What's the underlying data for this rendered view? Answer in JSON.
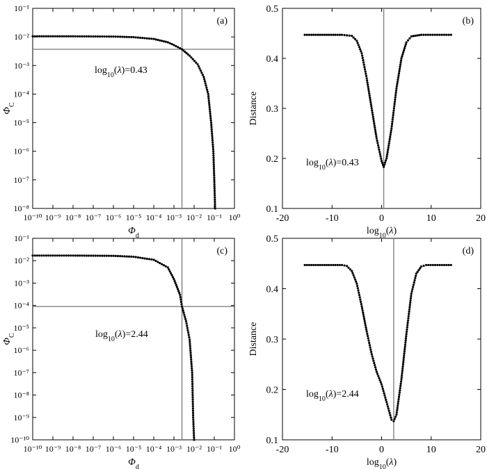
{
  "chart_data": [
    {
      "panel": "(a)",
      "type": "scatter",
      "xlabel": {
        "sym": "Φ",
        "sub": "d"
      },
      "ylabel": {
        "sym": "Φ",
        "sub": "C"
      },
      "xscale": "log",
      "yscale": "log",
      "xlim": [
        1e-10,
        1
      ],
      "ylim": [
        1e-08,
        0.1
      ],
      "xtick_exponents": [
        -10,
        -9,
        -8,
        -7,
        -6,
        -5,
        -4,
        -3,
        -2,
        -1,
        0
      ],
      "ytick_exponents": [
        -8,
        -7,
        -6,
        -5,
        -4,
        -3,
        -2,
        -1
      ],
      "vline_x": 0.0025,
      "hline_y": 0.0037,
      "annotation": {
        "pre": "log",
        "sub": "10",
        "lambda": "λ",
        "post": "=0.43"
      },
      "points": [
        [
          1e-10,
          0.0105
        ],
        [
          1e-09,
          0.0105
        ],
        [
          1e-08,
          0.0105
        ],
        [
          1e-07,
          0.0104
        ],
        [
          1e-06,
          0.0103
        ],
        [
          1e-05,
          0.0098
        ],
        [
          0.0001,
          0.0085
        ],
        [
          0.0005,
          0.0065
        ],
        [
          0.001,
          0.0052
        ],
        [
          0.0025,
          0.0037
        ],
        [
          0.006,
          0.0022
        ],
        [
          0.015,
          0.0011
        ],
        [
          0.03,
          0.0004
        ],
        [
          0.05,
          0.0001
        ],
        [
          0.07,
          1e-05
        ],
        [
          0.09,
          1e-06
        ],
        [
          0.1,
          1e-07
        ],
        [
          0.11,
          1e-08
        ]
      ]
    },
    {
      "panel": "(b)",
      "type": "scatter",
      "xlabel": {
        "pre": "log",
        "sub": "10",
        "lambda": "λ"
      },
      "ylabel": "Distance",
      "xlim": [
        -20,
        20
      ],
      "ylim": [
        0.1,
        0.5
      ],
      "xticks": [
        -20,
        -10,
        0,
        10,
        20
      ],
      "yticks": [
        0.1,
        0.2,
        0.3,
        0.4,
        0.5
      ],
      "vline_x": 0.43,
      "annotation": {
        "pre": "log",
        "sub": "10",
        "lambda": "λ",
        "post": "=0.43"
      },
      "points": [
        [
          -15.5,
          0.447
        ],
        [
          -8,
          0.447
        ],
        [
          -6,
          0.445
        ],
        [
          -5,
          0.435
        ],
        [
          -4,
          0.41
        ],
        [
          -3,
          0.36
        ],
        [
          -2,
          0.3
        ],
        [
          -1,
          0.24
        ],
        [
          0,
          0.195
        ],
        [
          0.43,
          0.183
        ],
        [
          1,
          0.2
        ],
        [
          2,
          0.26
        ],
        [
          3,
          0.34
        ],
        [
          4,
          0.4
        ],
        [
          5,
          0.432
        ],
        [
          6,
          0.444
        ],
        [
          8,
          0.447
        ],
        [
          14,
          0.447
        ]
      ]
    },
    {
      "panel": "(c)",
      "type": "scatter",
      "xlabel": {
        "sym": "Φ",
        "sub": "d"
      },
      "ylabel": {
        "sym": "Φ",
        "sub": "C"
      },
      "xscale": "log",
      "yscale": "log",
      "xlim": [
        1e-10,
        1
      ],
      "ylim": [
        1e-10,
        0.1
      ],
      "xtick_exponents": [
        -10,
        -9,
        -8,
        -7,
        -6,
        -5,
        -4,
        -3,
        -2,
        -1,
        0
      ],
      "ytick_exponents": [
        -10,
        -9,
        -8,
        -7,
        -6,
        -5,
        -4,
        -3,
        -2,
        -1
      ],
      "vline_x": 0.0025,
      "hline_y": 9e-05,
      "annotation": {
        "pre": "log",
        "sub": "10",
        "lambda": "λ",
        "post": "=2.44"
      },
      "points": [
        [
          1e-10,
          0.017
        ],
        [
          1e-08,
          0.017
        ],
        [
          1e-06,
          0.0165
        ],
        [
          1e-05,
          0.015
        ],
        [
          0.0001,
          0.011
        ],
        [
          0.0005,
          0.005
        ],
        [
          0.001,
          0.0015
        ],
        [
          0.002,
          0.0003
        ],
        [
          0.0025,
          9e-05
        ],
        [
          0.004,
          2e-05
        ],
        [
          0.006,
          3e-06
        ],
        [
          0.008,
          1e-07
        ],
        [
          0.009,
          1e-09
        ],
        [
          0.01,
          1e-10
        ]
      ]
    },
    {
      "panel": "(d)",
      "type": "scatter",
      "xlabel": {
        "pre": "log",
        "sub": "10",
        "lambda": "λ"
      },
      "ylabel": "Distance",
      "xlim": [
        -20,
        20
      ],
      "ylim": [
        0.1,
        0.5
      ],
      "xticks": [
        -20,
        -10,
        0,
        10,
        20
      ],
      "yticks": [
        0.1,
        0.2,
        0.3,
        0.4,
        0.5
      ],
      "vline_x": 2.44,
      "annotation": {
        "pre": "log",
        "sub": "10",
        "lambda": "λ",
        "post": "=2.44"
      },
      "points": [
        [
          -15.5,
          0.447
        ],
        [
          -8,
          0.447
        ],
        [
          -7,
          0.445
        ],
        [
          -6,
          0.435
        ],
        [
          -5,
          0.41
        ],
        [
          -4,
          0.365
        ],
        [
          -3,
          0.315
        ],
        [
          -2,
          0.27
        ],
        [
          -1,
          0.235
        ],
        [
          0,
          0.21
        ],
        [
          1,
          0.175
        ],
        [
          2,
          0.14
        ],
        [
          2.44,
          0.137
        ],
        [
          3,
          0.15
        ],
        [
          4,
          0.22
        ],
        [
          5,
          0.31
        ],
        [
          6,
          0.39
        ],
        [
          7,
          0.43
        ],
        [
          8,
          0.444
        ],
        [
          9,
          0.447
        ],
        [
          14,
          0.447
        ]
      ]
    }
  ]
}
